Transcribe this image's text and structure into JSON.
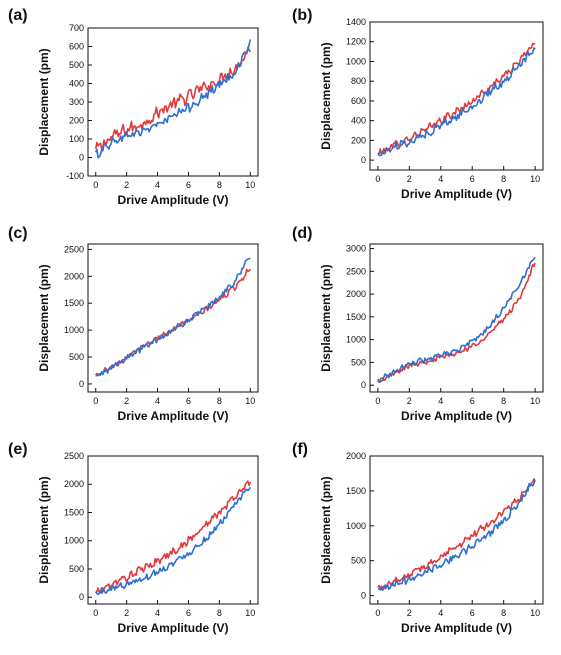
{
  "figure": {
    "background": "#ffffff"
  },
  "colors": {
    "series_red": "#e23a3a",
    "series_blue": "#2f6fcf",
    "axis": "#111111"
  },
  "chart_data": [
    {
      "type": "line",
      "panel_label": "(a)",
      "xlabel": "Drive Amplitude (V)",
      "ylabel": "Displacement (pm)",
      "xlim": [
        -0.5,
        10.5
      ],
      "ylim": [
        -100,
        700
      ],
      "xticks": [
        0,
        2,
        4,
        6,
        8,
        10
      ],
      "yticks": [
        -100,
        0,
        100,
        200,
        300,
        400,
        500,
        600,
        700
      ],
      "series": [
        {
          "color": "#e23a3a",
          "x": [
            0,
            1,
            2,
            3,
            4,
            5,
            6,
            7,
            8,
            9,
            10
          ],
          "y": [
            40,
            110,
            150,
            180,
            240,
            290,
            330,
            380,
            420,
            480,
            590
          ],
          "noise": 28
        },
        {
          "color": "#2f6fcf",
          "x": [
            0,
            1,
            2,
            3,
            4,
            5,
            6,
            7,
            8,
            9,
            10
          ],
          "y": [
            15,
            80,
            120,
            140,
            180,
            220,
            270,
            330,
            390,
            460,
            620
          ],
          "noise": 22
        }
      ]
    },
    {
      "type": "line",
      "panel_label": "(b)",
      "xlabel": "Drive Amplitude (V)",
      "ylabel": "Displacement (pm)",
      "xlim": [
        -0.5,
        10.5
      ],
      "ylim": [
        -100,
        1400
      ],
      "xticks": [
        0,
        2,
        4,
        6,
        8,
        10
      ],
      "yticks": [
        0,
        200,
        400,
        600,
        800,
        1000,
        1200,
        1400
      ],
      "series": [
        {
          "color": "#e23a3a",
          "x": [
            0,
            1,
            2,
            3,
            4,
            5,
            6,
            7,
            8,
            9,
            10
          ],
          "y": [
            60,
            150,
            220,
            300,
            400,
            490,
            600,
            720,
            850,
            1000,
            1200
          ],
          "noise": 35
        },
        {
          "color": "#2f6fcf",
          "x": [
            0,
            1,
            2,
            3,
            4,
            5,
            6,
            7,
            8,
            9,
            10
          ],
          "y": [
            50,
            130,
            190,
            260,
            350,
            440,
            540,
            670,
            800,
            950,
            1160
          ],
          "noise": 35
        }
      ]
    },
    {
      "type": "line",
      "panel_label": "(c)",
      "xlabel": "Drive Amplitude (V)",
      "ylabel": "Displacement (pm)",
      "xlim": [
        -0.5,
        10.5
      ],
      "ylim": [
        -150,
        2600
      ],
      "xticks": [
        0,
        2,
        4,
        6,
        8,
        10
      ],
      "yticks": [
        0,
        500,
        1000,
        1500,
        2000,
        2500
      ],
      "series": [
        {
          "color": "#e23a3a",
          "x": [
            0,
            1,
            2,
            3,
            4,
            5,
            6,
            7,
            8,
            9,
            10
          ],
          "y": [
            150,
            320,
            500,
            680,
            850,
            1020,
            1180,
            1350,
            1560,
            1800,
            2150
          ],
          "noise": 45
        },
        {
          "color": "#2f6fcf",
          "x": [
            0,
            1,
            2,
            3,
            4,
            5,
            6,
            7,
            8,
            9,
            10
          ],
          "y": [
            120,
            300,
            480,
            660,
            830,
            1000,
            1180,
            1380,
            1620,
            1900,
            2380
          ],
          "noise": 45
        }
      ]
    },
    {
      "type": "line",
      "panel_label": "(d)",
      "xlabel": "Drive Amplitude (V)",
      "ylabel": "Displacement (pm)",
      "xlim": [
        -0.5,
        10.5
      ],
      "ylim": [
        -150,
        3100
      ],
      "xticks": [
        0,
        2,
        4,
        6,
        8,
        10
      ],
      "yticks": [
        0,
        500,
        1000,
        1500,
        2000,
        2500,
        3000
      ],
      "series": [
        {
          "color": "#e23a3a",
          "x": [
            0,
            1,
            2,
            3,
            4,
            5,
            6,
            7,
            8,
            9,
            10
          ],
          "y": [
            80,
            250,
            430,
            520,
            600,
            700,
            850,
            1100,
            1450,
            1900,
            2700
          ],
          "noise": 50
        },
        {
          "color": "#2f6fcf",
          "x": [
            0,
            1,
            2,
            3,
            4,
            5,
            6,
            7,
            8,
            9,
            10
          ],
          "y": [
            100,
            280,
            470,
            560,
            650,
            750,
            950,
            1250,
            1700,
            2200,
            2850
          ],
          "noise": 50
        }
      ]
    },
    {
      "type": "line",
      "panel_label": "(e)",
      "xlabel": "Drive Amplitude (V)",
      "ylabel": "Displacement (pm)",
      "xlim": [
        -0.5,
        10.5
      ],
      "ylim": [
        -120,
        2500
      ],
      "xticks": [
        0,
        2,
        4,
        6,
        8,
        10
      ],
      "yticks": [
        0,
        500,
        1000,
        1500,
        2000,
        2500
      ],
      "series": [
        {
          "color": "#e23a3a",
          "x": [
            0,
            1,
            2,
            3,
            4,
            5,
            6,
            7,
            8,
            9,
            10
          ],
          "y": [
            80,
            220,
            350,
            500,
            640,
            800,
            1000,
            1250,
            1500,
            1780,
            2050
          ],
          "noise": 55
        },
        {
          "color": "#2f6fcf",
          "x": [
            0,
            1,
            2,
            3,
            4,
            5,
            6,
            7,
            8,
            9,
            10
          ],
          "y": [
            60,
            150,
            230,
            330,
            450,
            600,
            780,
            1000,
            1300,
            1620,
            1980
          ],
          "noise": 50
        }
      ]
    },
    {
      "type": "line",
      "panel_label": "(f)",
      "xlabel": "Drive Amplitude (V)",
      "ylabel": "Displacement (pm)",
      "xlim": [
        -0.5,
        10.5
      ],
      "ylim": [
        -120,
        2000
      ],
      "xticks": [
        0,
        2,
        4,
        6,
        8,
        10
      ],
      "yticks": [
        0,
        500,
        1000,
        1500,
        2000
      ],
      "series": [
        {
          "color": "#e23a3a",
          "x": [
            0,
            1,
            2,
            3,
            4,
            5,
            6,
            7,
            8,
            9,
            10
          ],
          "y": [
            100,
            200,
            300,
            420,
            560,
            700,
            860,
            1020,
            1200,
            1400,
            1650
          ],
          "noise": 45
        },
        {
          "color": "#2f6fcf",
          "x": [
            0,
            1,
            2,
            3,
            4,
            5,
            6,
            7,
            8,
            9,
            10
          ],
          "y": [
            60,
            150,
            240,
            340,
            450,
            570,
            710,
            880,
            1080,
            1320,
            1680
          ],
          "noise": 45
        }
      ]
    }
  ]
}
